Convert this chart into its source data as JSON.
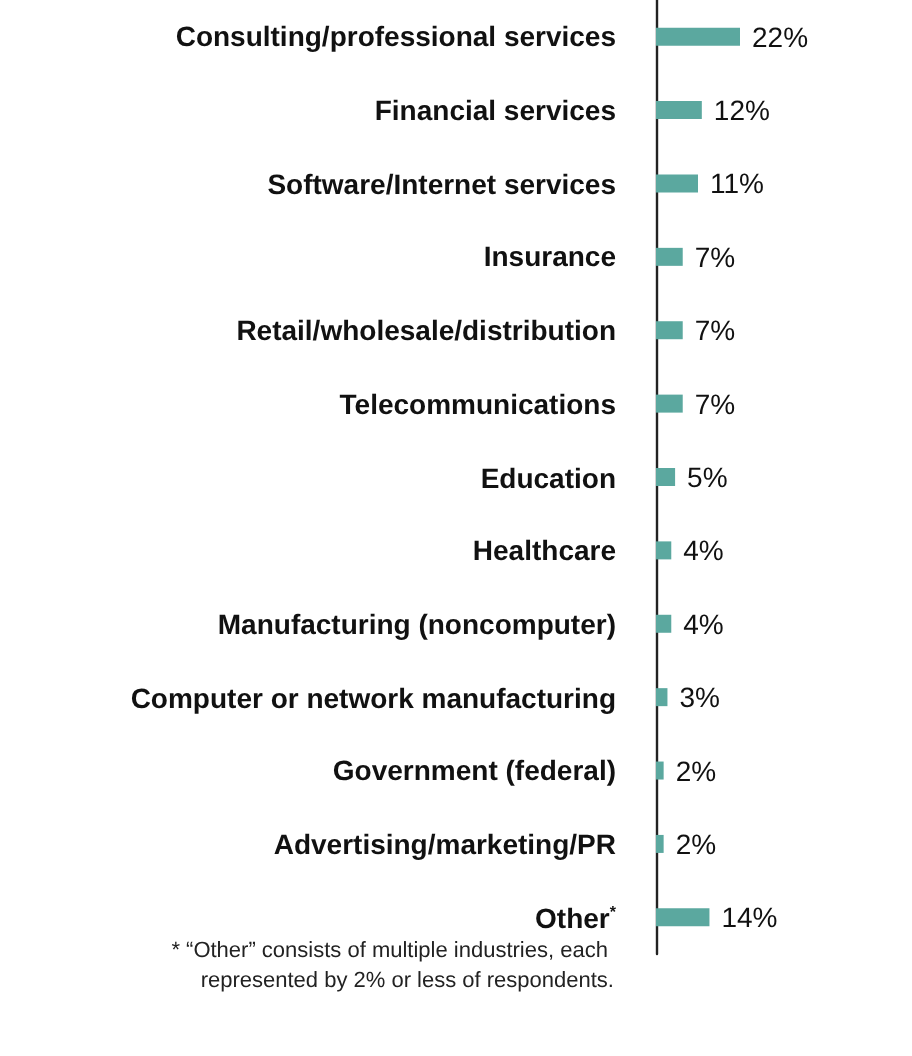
{
  "chart_data": {
    "type": "bar",
    "orientation": "horizontal",
    "categories": [
      "Consulting/professional services",
      "Financial services",
      "Software/Internet services",
      "Insurance",
      "Retail/wholesale/distribution",
      "Telecommunications",
      "Education",
      "Healthcare",
      "Manufacturing (noncomputer)",
      "Computer or network manufacturing",
      "Government (federal)",
      "Advertising/marketing/PR",
      "Other$^{*}$"
    ],
    "values": [
      22,
      12,
      11,
      7,
      7,
      7,
      5,
      4,
      4,
      3,
      2,
      2,
      14
    ],
    "value_labels": [
      "22%",
      "12%",
      "11%",
      "7%",
      "7%",
      "7%",
      "5%",
      "4%",
      "4%",
      "3%",
      "2%",
      "2%",
      "14%"
    ],
    "color": "#5ba89f",
    "tick_labels": "y",
    "annotations": [
      "* “Other” consists of multiple industries, each represented by 2% or less of respondents."
    ]
  }
}
